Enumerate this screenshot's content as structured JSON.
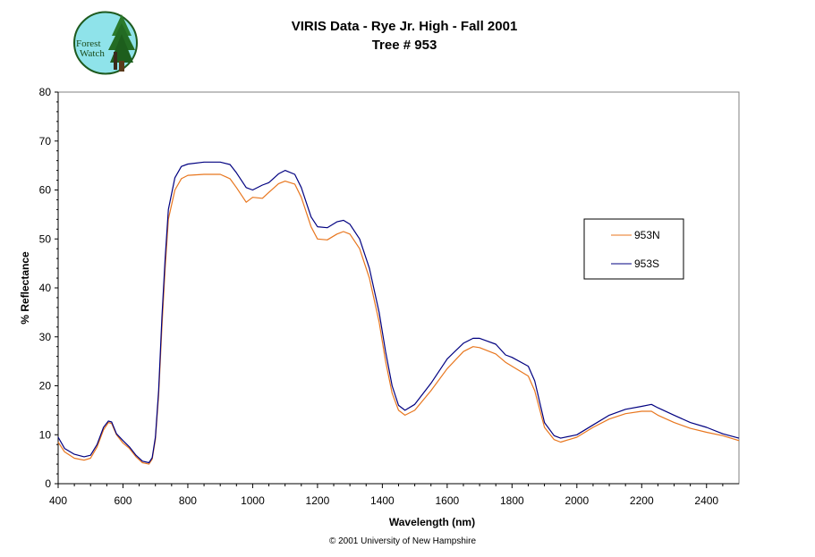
{
  "header": {
    "title": "VIRIS Data - Rye Jr. High - Fall 2001",
    "subtitle": "Tree # 953"
  },
  "logo": {
    "line1": "Forest",
    "line2": "Watch",
    "icon": "forest-watch-logo"
  },
  "footer": {
    "copyright": "© 2001 University of New Hampshire"
  },
  "chart_data": {
    "type": "line",
    "title": "VIRIS Data - Rye Jr. High - Fall 2001",
    "subtitle": "Tree # 953",
    "xlabel": "Wavelength (nm)",
    "ylabel": "% Reflectance",
    "xlim": [
      400,
      2500
    ],
    "ylim": [
      0,
      80
    ],
    "xticks": [
      400,
      600,
      800,
      1000,
      1200,
      1400,
      1600,
      1800,
      2000,
      2200,
      2400
    ],
    "yticks": [
      0,
      10,
      20,
      30,
      40,
      50,
      60,
      70,
      80
    ],
    "grid": false,
    "legend_position": "right",
    "series": [
      {
        "name": "953N",
        "color": "#e8761e",
        "x": [
          400,
          420,
          450,
          480,
          500,
          520,
          540,
          555,
          565,
          580,
          600,
          620,
          640,
          660,
          680,
          690,
          700,
          710,
          720,
          730,
          740,
          760,
          780,
          800,
          850,
          900,
          930,
          950,
          980,
          1000,
          1030,
          1050,
          1080,
          1100,
          1130,
          1150,
          1180,
          1200,
          1230,
          1260,
          1280,
          1300,
          1330,
          1360,
          1390,
          1410,
          1430,
          1450,
          1470,
          1500,
          1550,
          1600,
          1650,
          1680,
          1700,
          1750,
          1780,
          1800,
          1850,
          1870,
          1900,
          1930,
          1950,
          2000,
          2050,
          2100,
          2150,
          2200,
          2230,
          2250,
          2300,
          2350,
          2400,
          2450,
          2500
        ],
        "y": [
          8.5,
          6.5,
          5.2,
          4.8,
          5.2,
          7.5,
          11,
          12.5,
          12.3,
          10,
          8.3,
          7.2,
          5.5,
          4.3,
          4.0,
          5.0,
          9,
          18,
          32,
          44,
          54,
          60,
          62.3,
          63,
          63.2,
          63.2,
          62.3,
          60.5,
          57.5,
          58.5,
          58.3,
          59.5,
          61.3,
          61.8,
          61.2,
          58.5,
          52.5,
          50,
          49.8,
          51,
          51.5,
          51,
          48,
          42,
          33,
          25,
          18.5,
          15,
          14,
          15,
          19,
          23.5,
          27,
          28,
          27.8,
          26.5,
          24.8,
          24,
          22,
          19,
          11.5,
          9,
          8.5,
          9.5,
          11.5,
          13.2,
          14.3,
          14.8,
          14.8,
          14,
          12.5,
          11.3,
          10.5,
          9.8,
          8.8
        ]
      },
      {
        "name": "953S",
        "color": "#000080",
        "x": [
          400,
          420,
          450,
          480,
          500,
          520,
          540,
          555,
          565,
          580,
          600,
          620,
          640,
          660,
          680,
          690,
          700,
          710,
          720,
          730,
          740,
          760,
          780,
          800,
          850,
          900,
          930,
          950,
          980,
          1000,
          1030,
          1050,
          1080,
          1100,
          1130,
          1150,
          1180,
          1200,
          1230,
          1260,
          1280,
          1300,
          1330,
          1360,
          1390,
          1410,
          1430,
          1450,
          1470,
          1500,
          1550,
          1600,
          1650,
          1680,
          1700,
          1750,
          1780,
          1800,
          1850,
          1870,
          1900,
          1930,
          1950,
          2000,
          2050,
          2100,
          2150,
          2200,
          2230,
          2250,
          2300,
          2350,
          2400,
          2450,
          2500
        ],
        "y": [
          9.5,
          7.2,
          6,
          5.5,
          5.8,
          8,
          11.5,
          12.8,
          12.6,
          10.2,
          8.8,
          7.5,
          5.8,
          4.6,
          4.3,
          5.3,
          9.5,
          19,
          34,
          46,
          56,
          62.5,
          64.8,
          65.3,
          65.7,
          65.7,
          65.2,
          63.5,
          60.5,
          60,
          61,
          61.5,
          63.3,
          64,
          63.2,
          60.5,
          54.5,
          52.5,
          52.3,
          53.5,
          53.8,
          53,
          50,
          44,
          35,
          27,
          20,
          16,
          15,
          16.2,
          20.5,
          25.5,
          28.7,
          29.7,
          29.7,
          28.5,
          26.3,
          25.8,
          24,
          21,
          12.5,
          9.8,
          9.3,
          10,
          12,
          14,
          15.2,
          15.8,
          16.2,
          15.5,
          14,
          12.5,
          11.5,
          10.2,
          9.3
        ]
      }
    ]
  }
}
